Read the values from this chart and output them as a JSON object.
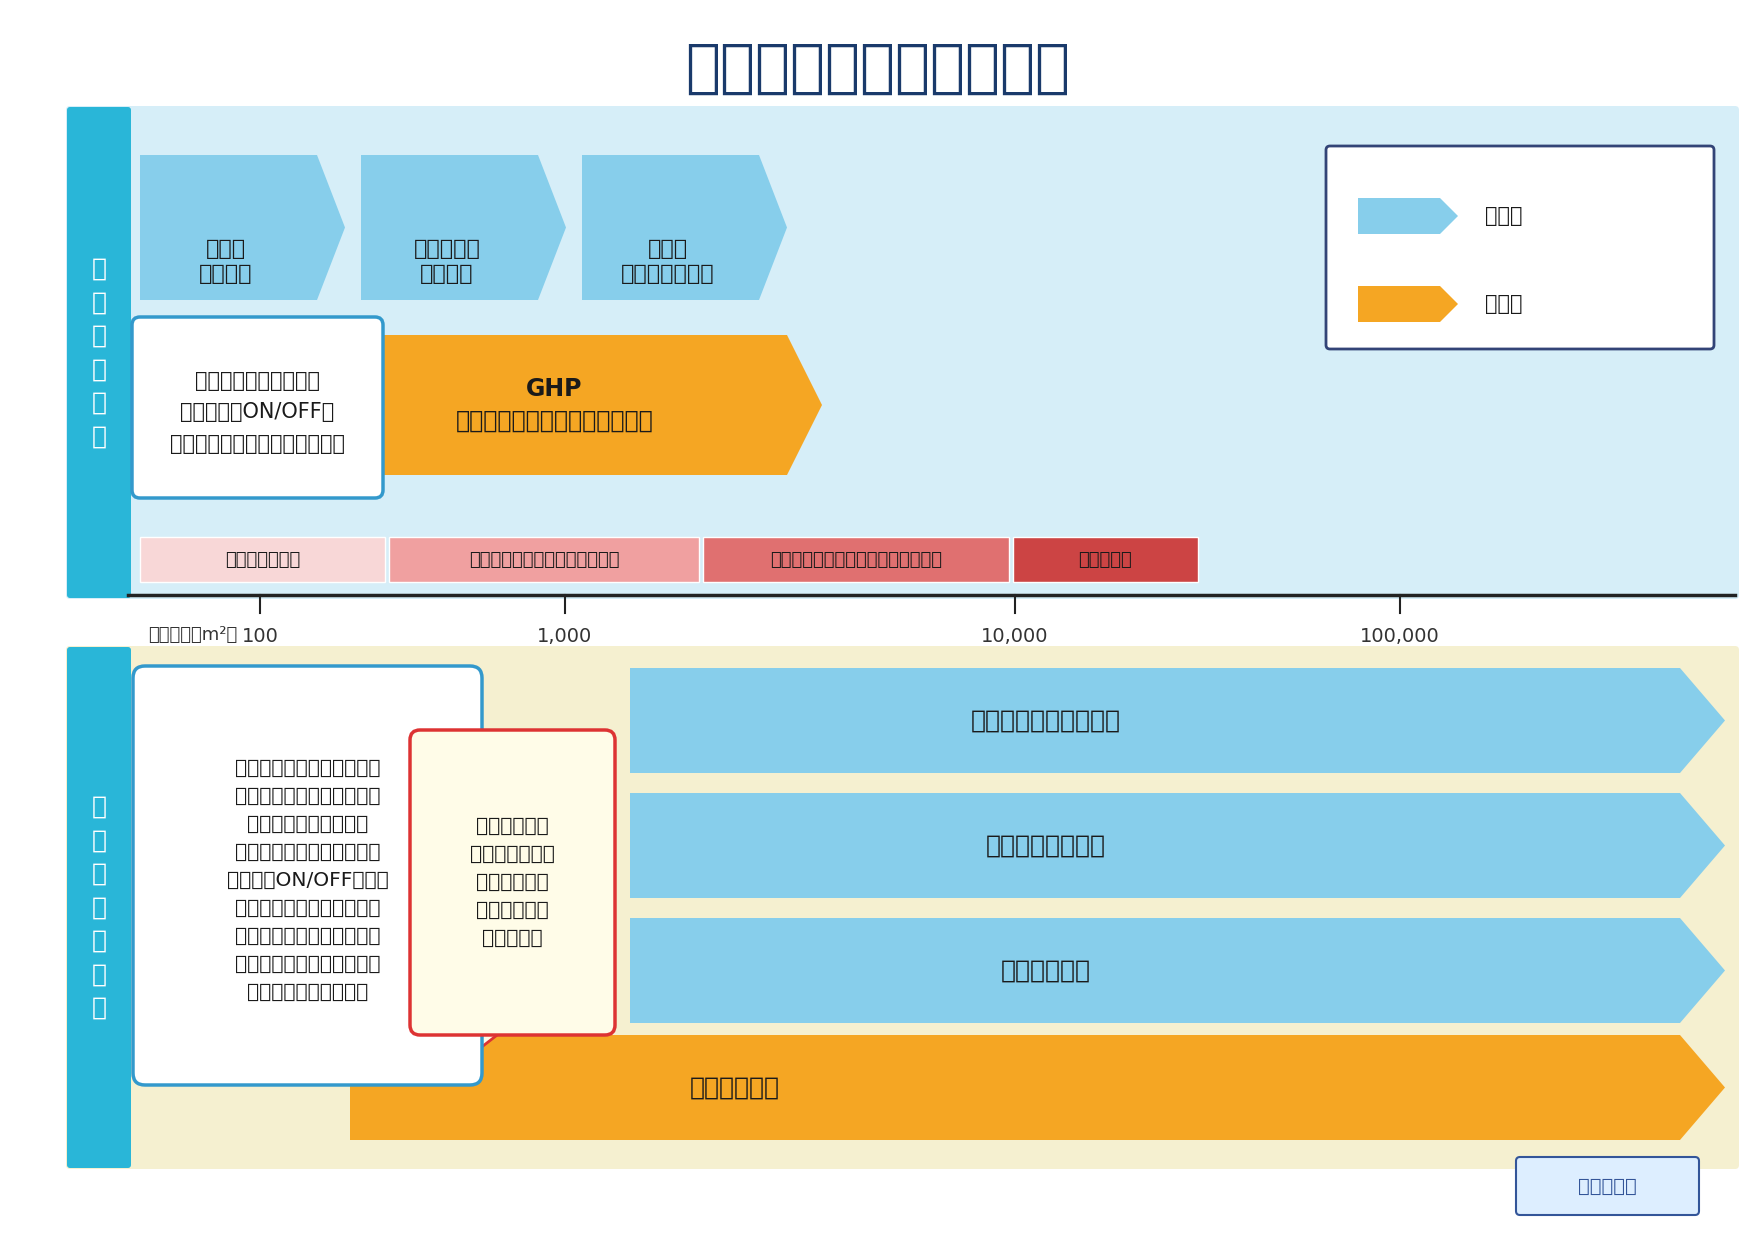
{
  "title": "空調の種類と用途・規模",
  "title_color": "#1a3a6b",
  "bg_color": "#ffffff",
  "top_section_bg": "#d6eef8",
  "bottom_section_bg": "#f5f0d0",
  "side_bar_color": "#29b6d8",
  "blue_arrow_color": "#87ceeb",
  "orange_arrow_color": "#f5a623",
  "side_label_top": "個\n別\n分\n散\n方\n式",
  "side_label_bottom": "セ\nン\nト\nラ\nル\n方\n式",
  "description_top": "部屋ごとに独立して、\nスイッチのON/OFF、\n温度設定など個別で行えます。",
  "description_bottom": "ビル一括で稼働している空\n調で、比較的規模の大きな\nビルで採用されます。\n熱源機は一括設定のため、\n熱源機のON/OFFや温度\n設定が手元スイッチでは行\nえませんが、同時使用率を\n考慮して、効率的な熱源容\n量の設計が可能です。",
  "refrigerant_note": "冷媒は水なの\nで、オゾン層破\n壊や地球温暖\n化の防止に貢\n献します。",
  "scale_labels": [
    "住宅・小型店舗",
    "小規模事務所・郊外店舗・学校",
    "中規模ビル・ショッピングセンター",
    "大規模ビル"
  ],
  "scale_colors": [
    "#f8d7d7",
    "#f0a0a0",
    "#e07070",
    "#cc4444"
  ],
  "axis_label": "延床面積（m²）",
  "axis_ticks": [
    "100",
    "1,000",
    "10,000",
    "100,000"
  ],
  "legend_items": [
    {
      "label": "電気式",
      "color": "#87ceeb"
    },
    {
      "label": "ガス式",
      "color": "#f5a623"
    }
  ],
  "back_button_label": "目次に戻る",
  "back_button_color": "#ddeeff",
  "back_button_border": "#335599"
}
